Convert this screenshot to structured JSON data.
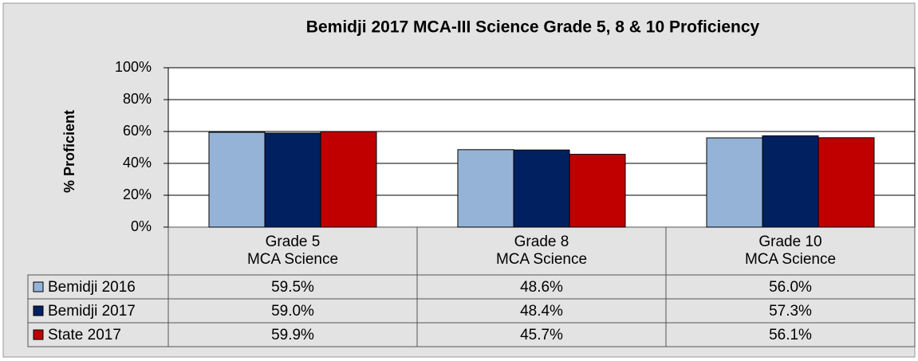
{
  "chart_data": {
    "type": "bar",
    "title": "Bemidji 2017 MCA-III Science Grade 5, 8 & 10 Proficiency",
    "y_label": "% Proficient",
    "categories": [
      "Grade 5\nMCA Science",
      "Grade 8\nMCA Science",
      "Grade 10\nMCA Science"
    ],
    "series": [
      {
        "name": "Bemidji 2016",
        "color": "#95b3d7",
        "values": [
          59.5,
          48.6,
          56.0
        ],
        "value_labels": [
          "59.5%",
          "48.6%",
          "56.0%"
        ]
      },
      {
        "name": "Bemidji 2017",
        "color": "#002060",
        "values": [
          59.0,
          48.4,
          57.3
        ],
        "value_labels": [
          "59.0%",
          "48.4%",
          "57.3%"
        ]
      },
      {
        "name": "State 2017",
        "color": "#c00000",
        "values": [
          59.9,
          45.7,
          56.1
        ],
        "value_labels": [
          "59.9%",
          "45.7%",
          "56.1%"
        ]
      }
    ],
    "ylim": [
      0,
      100
    ],
    "yticks": [
      {
        "value": 0,
        "label": "0%"
      },
      {
        "value": 20,
        "label": "20%"
      },
      {
        "value": 40,
        "label": "40%"
      },
      {
        "value": 60,
        "label": "60%"
      },
      {
        "value": 80,
        "label": "80%"
      },
      {
        "value": 100,
        "label": "100%"
      }
    ],
    "grid": true
  }
}
